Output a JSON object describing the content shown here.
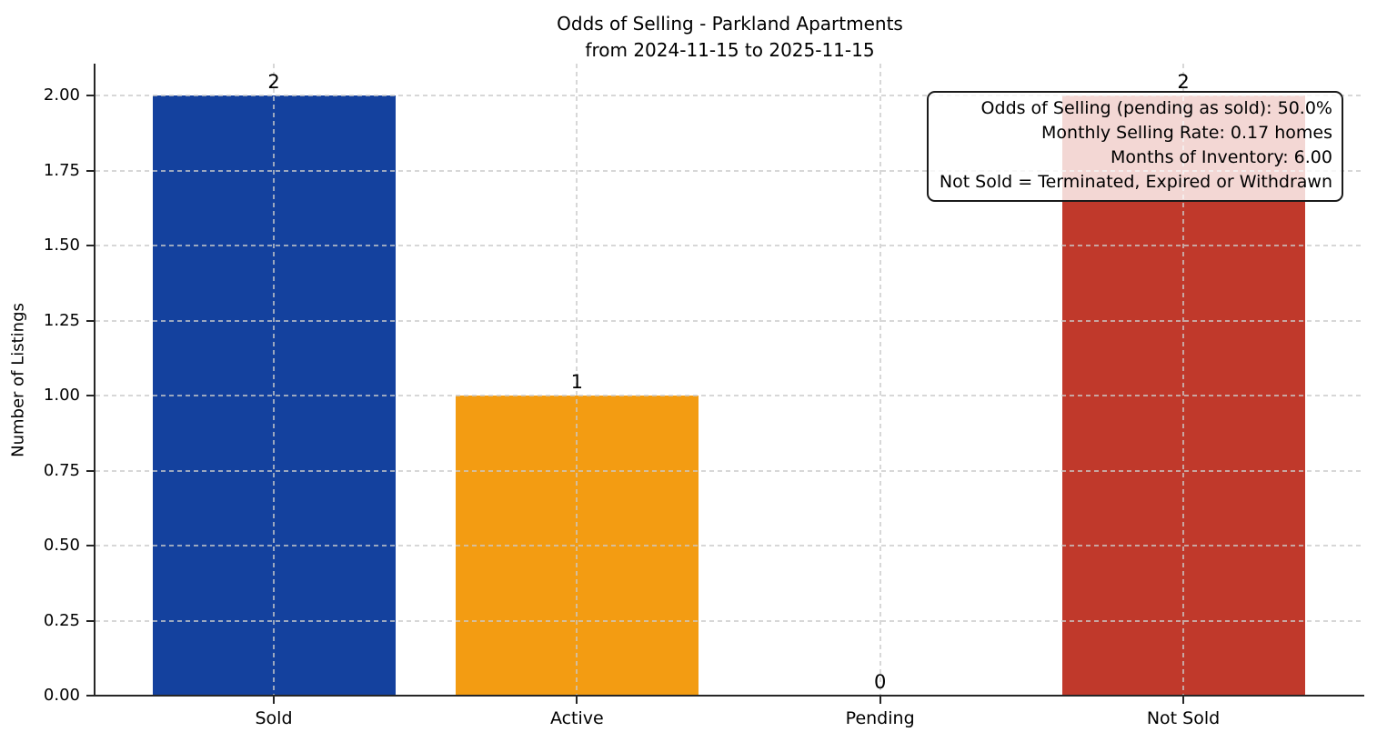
{
  "chart_data": {
    "type": "bar",
    "title": "Odds of Selling - Parkland Apartments",
    "subtitle": "from 2024-11-15 to 2025-11-15",
    "ylabel": "Number of Listings",
    "xlabel": "",
    "categories": [
      "Sold",
      "Active",
      "Pending",
      "Not Sold"
    ],
    "values": [
      2,
      1,
      0,
      2
    ],
    "bar_value_labels": [
      "2",
      "1",
      "0",
      "2"
    ],
    "bar_colors": [
      "#14419e",
      "#f39c12",
      null,
      "#c0392b"
    ],
    "ylim": [
      0,
      2.1
    ],
    "yticks": [
      0,
      0.25,
      0.5,
      0.75,
      1,
      1.25,
      1.5,
      1.75,
      2
    ],
    "ytick_labels": [
      "0.00",
      "0.25",
      "0.50",
      "0.75",
      "1.00",
      "1.25",
      "1.50",
      "1.75",
      "2.00"
    ],
    "grid": {
      "visible": true,
      "style": "dashed",
      "axes": "both",
      "color": "#d8d8d8"
    },
    "legend": null,
    "annotation": {
      "lines": [
        "Odds of Selling (pending as sold): 50.0%",
        "Monthly Selling Rate: 0.17 homes",
        "Months of Inventory: 6.00",
        "Not Sold = Terminated, Expired or Withdrawn"
      ]
    },
    "colors": {
      "axis": "#262626",
      "text": "#000000",
      "annotation_border": "#1a1a1a",
      "annotation_background": "rgba(255,255,255,0.8)"
    }
  }
}
